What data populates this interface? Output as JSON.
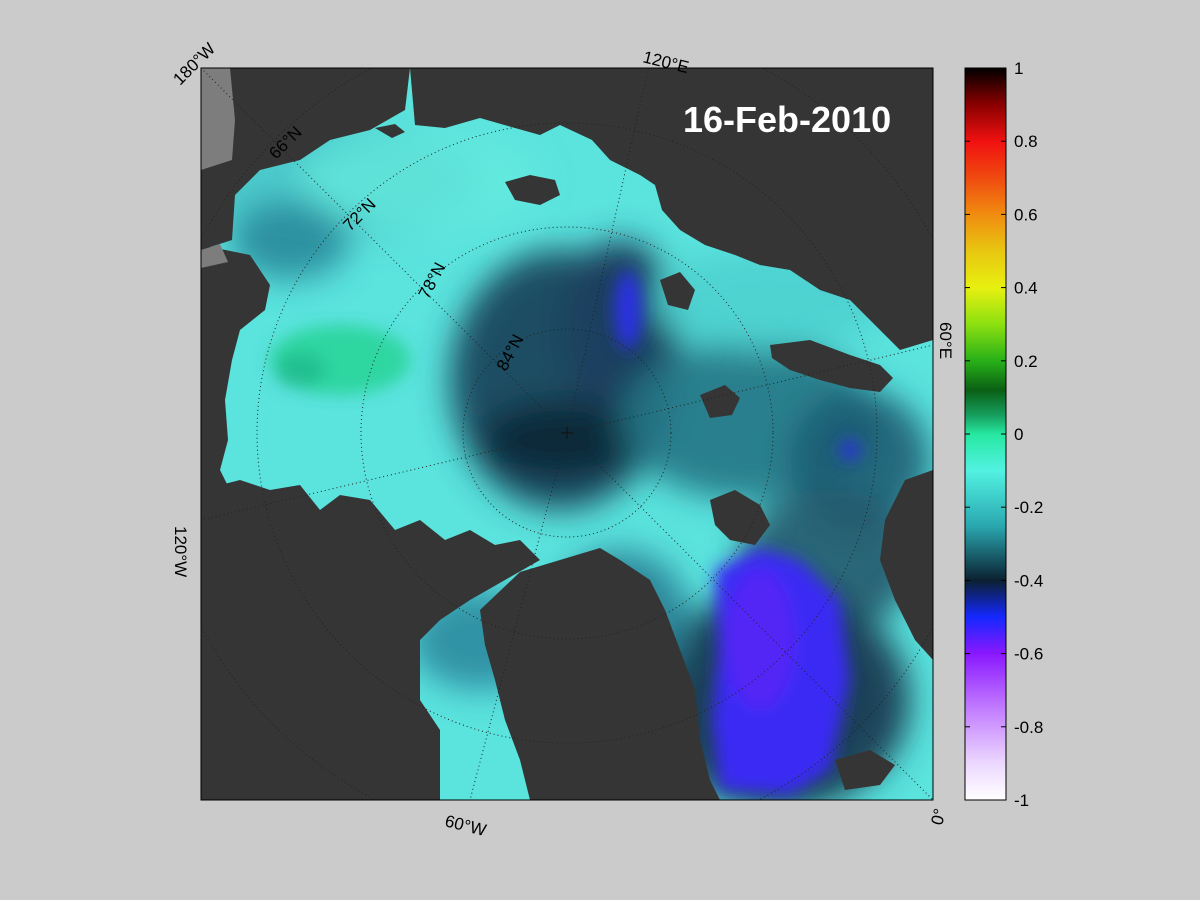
{
  "map": {
    "date_label": "16-Feb-2010",
    "projection": "north polar stereographic",
    "longitude_labels": [
      "180°W",
      "120°E",
      "60°E",
      "0°",
      "60°W",
      "120°W"
    ],
    "latitude_labels": [
      "66°N",
      "72°N",
      "78°N",
      "84°N"
    ],
    "colors": {
      "ocean_base": "#5be3de",
      "land": "#353535",
      "land_mask_light": "#7d7d7d",
      "figure_background": "#cbcbcb"
    }
  },
  "colorbar": {
    "tick_labels": [
      "1",
      "0.8",
      "0.6",
      "0.4",
      "0.2",
      "0",
      "-0.2",
      "-0.4",
      "-0.6",
      "-0.8",
      "-1"
    ],
    "min": -1,
    "max": 1,
    "colormap_stops": [
      {
        "value": 1.0,
        "color": "#000000"
      },
      {
        "value": 0.9,
        "color": "#8a0000"
      },
      {
        "value": 0.8,
        "color": "#f01010"
      },
      {
        "value": 0.7,
        "color": "#f04a10"
      },
      {
        "value": 0.6,
        "color": "#f08c10"
      },
      {
        "value": 0.5,
        "color": "#e8c610"
      },
      {
        "value": 0.4,
        "color": "#e8f010"
      },
      {
        "value": 0.3,
        "color": "#8ce010"
      },
      {
        "value": 0.2,
        "color": "#28b018"
      },
      {
        "value": 0.12,
        "color": "#0a6014"
      },
      {
        "value": 0.05,
        "color": "#16a060"
      },
      {
        "value": 0.0,
        "color": "#26e8a0"
      },
      {
        "value": -0.1,
        "color": "#52f2e2"
      },
      {
        "value": -0.25,
        "color": "#2aa8b0"
      },
      {
        "value": -0.4,
        "color": "#0b2030"
      },
      {
        "value": -0.5,
        "color": "#1428ff"
      },
      {
        "value": -0.6,
        "color": "#8a18ff"
      },
      {
        "value": -0.75,
        "color": "#c27cff"
      },
      {
        "value": -0.9,
        "color": "#ecd8ff"
      },
      {
        "value": -1.0,
        "color": "#ffffff"
      }
    ]
  }
}
